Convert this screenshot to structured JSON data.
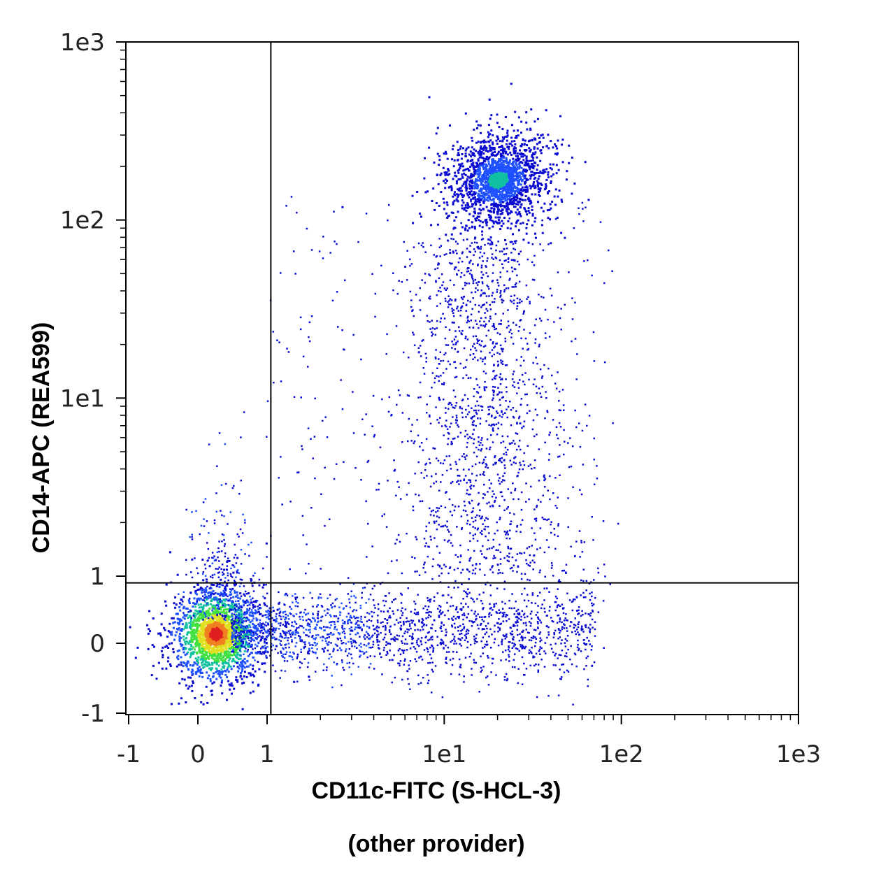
{
  "chart_data": {
    "type": "scatter",
    "subtype": "flow-cytometry density dot plot",
    "xlabel": "CD11c-FITC (S-HCL-3)",
    "xlabel_note": "(other provider)",
    "ylabel": "CD14-APC (REA599)",
    "x_scale": "biexponential (linear near 0, log above 1)",
    "y_scale": "biexponential (linear near 0, log above 1)",
    "xlim": [
      -1,
      1000
    ],
    "ylim": [
      -1,
      1000
    ],
    "x_ticks": [
      "-1",
      "0",
      "1",
      "1e1",
      "1e2",
      "1e3"
    ],
    "y_ticks": [
      "-1",
      "0",
      "1",
      "1e1",
      "1e2",
      "1e3"
    ],
    "gates": {
      "x_threshold": 1.05,
      "y_threshold": 0.9
    },
    "populations": [
      {
        "center_x": 0.25,
        "center_y": 0.15,
        "relative_size": 0.55,
        "peak_density_color": "#e23b1d"
      },
      {
        "center_x": 20,
        "center_y": 170,
        "relative_size": 0.22,
        "peak_density_color": "#1d8f7a"
      },
      {
        "x_range": [
          1,
          60
        ],
        "center_y": 0.15,
        "relative_size": 0.12,
        "description_color": "#1030e0"
      },
      {
        "x_range": [
          8,
          40
        ],
        "y_range": [
          1,
          60
        ],
        "relative_size": 0.08,
        "description_color": "#1030e0"
      }
    ],
    "colormap": [
      "#0a0ad0",
      "#1e50ff",
      "#10c0a0",
      "#40e040",
      "#e0e020",
      "#f08020",
      "#e02020"
    ],
    "grid": false,
    "legend": "none"
  }
}
